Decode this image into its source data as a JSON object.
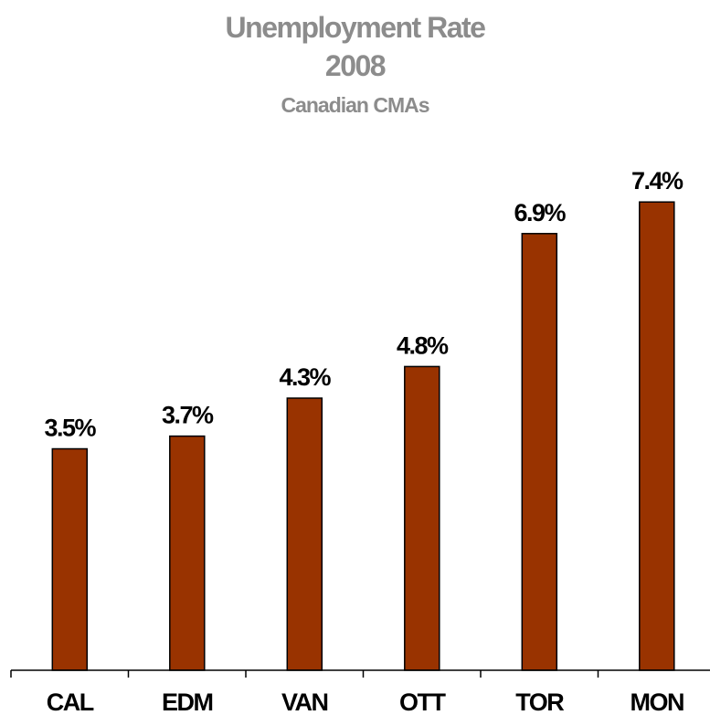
{
  "chart_data": {
    "type": "bar",
    "title": "Unemployment Rate",
    "subtitle_year": "2008",
    "subtitle": "Canadian CMAs",
    "categories": [
      "CAL",
      "EDM",
      "VAN",
      "OTT",
      "TOR",
      "MON"
    ],
    "values": [
      3.5,
      3.7,
      4.3,
      4.8,
      6.9,
      7.4
    ],
    "value_labels": [
      "3.5%",
      "3.7%",
      "4.3%",
      "4.8%",
      "6.9%",
      "7.4%"
    ],
    "xlabel": "",
    "ylabel": "",
    "ylim": [
      0,
      8.8
    ],
    "grid": false,
    "legend": "none",
    "bar_color": "#993300",
    "title_color": "#8c8c8c"
  }
}
